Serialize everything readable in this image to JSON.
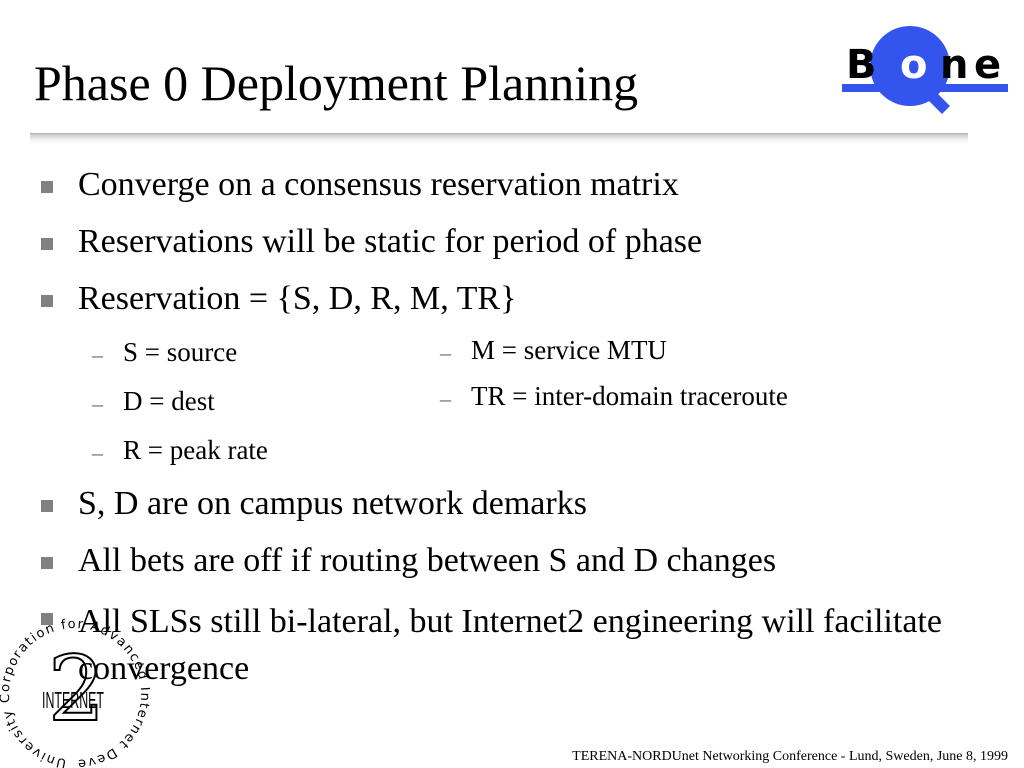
{
  "slide": {
    "title": "Phase 0 Deployment Planning",
    "logo_text": "Bone",
    "bullets": [
      "Converge on a consensus reservation matrix",
      "Reservations will be static for period of phase",
      "Reservation = {S, D, R, M, TR}",
      "S, D are on campus network demarks",
      "All bets are off if routing between S and D changes",
      "All SLSs still bi-lateral, but Internet2 engineering will facilitate convergence"
    ],
    "sub_left": [
      "S = source",
      "D = dest",
      "R = peak rate"
    ],
    "sub_right": [
      "M = service MTU",
      "TR = inter-domain traceroute"
    ],
    "seal": {
      "ring_text": "University Corporation for Advanced Internet Development",
      "center_text": "INTERNET",
      "center_numeral": "2"
    },
    "footer": "TERENA-NORDUnet Networking Conference - Lund, Sweden, June 8, 1999"
  },
  "colors": {
    "logo_blue": "#3355ee",
    "bullet_gray": "#808080",
    "rule_gray": "#c9c9c9"
  }
}
